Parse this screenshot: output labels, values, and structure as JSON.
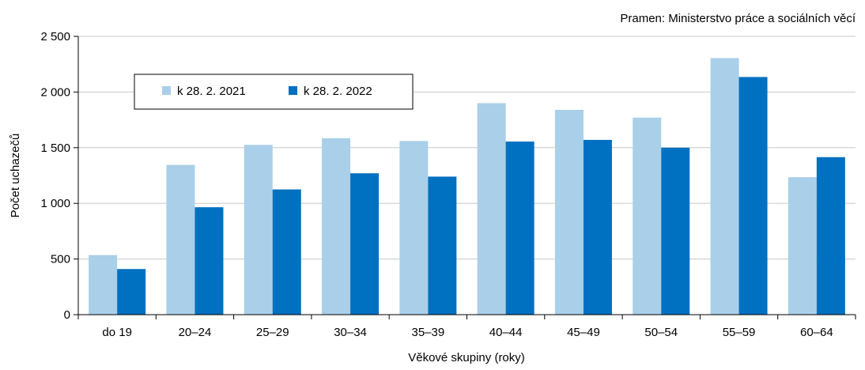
{
  "source_note": "Pramen: Ministerstvo práce a sociálních věcí",
  "chart_data": {
    "type": "bar",
    "xlabel": "Věkové skupiny (roky)",
    "ylabel": "Počet uchazečů",
    "categories": [
      "do 19",
      "20–24",
      "25–29",
      "30–34",
      "35–39",
      "40–44",
      "45–49",
      "50–54",
      "55–59",
      "60–64"
    ],
    "series": [
      {
        "name": "k 28. 2. 2021",
        "color": "#a9cfe9",
        "values": [
          535,
          1345,
          1525,
          1585,
          1560,
          1900,
          1840,
          1770,
          2305,
          1235
        ]
      },
      {
        "name": "k 28. 2. 2022",
        "color": "#0070c0",
        "values": [
          410,
          965,
          1125,
          1270,
          1240,
          1555,
          1570,
          1500,
          2135,
          1415
        ]
      }
    ],
    "ylim": [
      0,
      2500
    ],
    "yticks": [
      0,
      500,
      1000,
      1500,
      2000,
      2500
    ],
    "ytick_labels": [
      "0",
      "500",
      "1 000",
      "1 500",
      "2 000",
      "2 500"
    ],
    "grid": true,
    "legend_position": "top-left"
  }
}
